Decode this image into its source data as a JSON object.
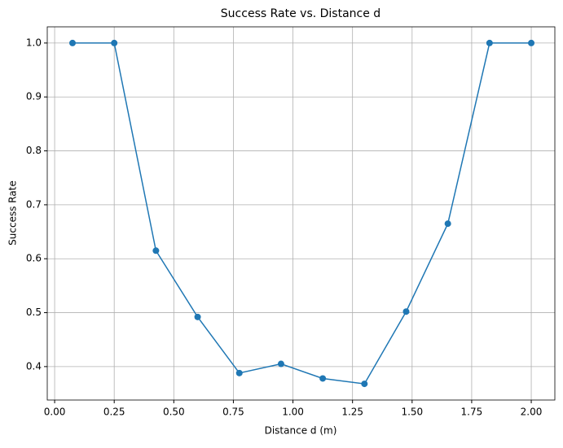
{
  "chart_data": {
    "type": "line",
    "title": "Success Rate vs. Distance d",
    "x_label": "Distance d (m)",
    "y_label": "Success Rate",
    "x": [
      0.075,
      0.25,
      0.425,
      0.6,
      0.775,
      0.95,
      1.125,
      1.3,
      1.475,
      1.65,
      1.825,
      2.0
    ],
    "series": [
      {
        "color": "#1f77b4",
        "marker": "circle",
        "values": [
          1.0,
          1.0,
          0.615,
          0.492,
          0.388,
          0.405,
          0.378,
          0.368,
          0.502,
          0.665,
          1.0,
          1.0
        ]
      }
    ],
    "xlim": [
      -0.031,
      2.099
    ],
    "ylim": [
      0.338,
      1.03
    ],
    "xticks": [
      {
        "value": 0,
        "label": "0.00"
      },
      {
        "value": 0.25,
        "label": "0.25"
      },
      {
        "value": 0.5,
        "label": "0.50"
      },
      {
        "value": 0.75,
        "label": "0.75"
      },
      {
        "value": 1,
        "label": "1.00"
      },
      {
        "value": 1.25,
        "label": "1.25"
      },
      {
        "value": 1.5,
        "label": "1.50"
      },
      {
        "value": 1.75,
        "label": "1.75"
      },
      {
        "value": 2,
        "label": "2.00"
      }
    ],
    "yticks": [
      0.4,
      0.5,
      0.6,
      0.7,
      0.8,
      0.9,
      {
        "value": 1,
        "label": "1.0"
      }
    ],
    "grid": true
  }
}
